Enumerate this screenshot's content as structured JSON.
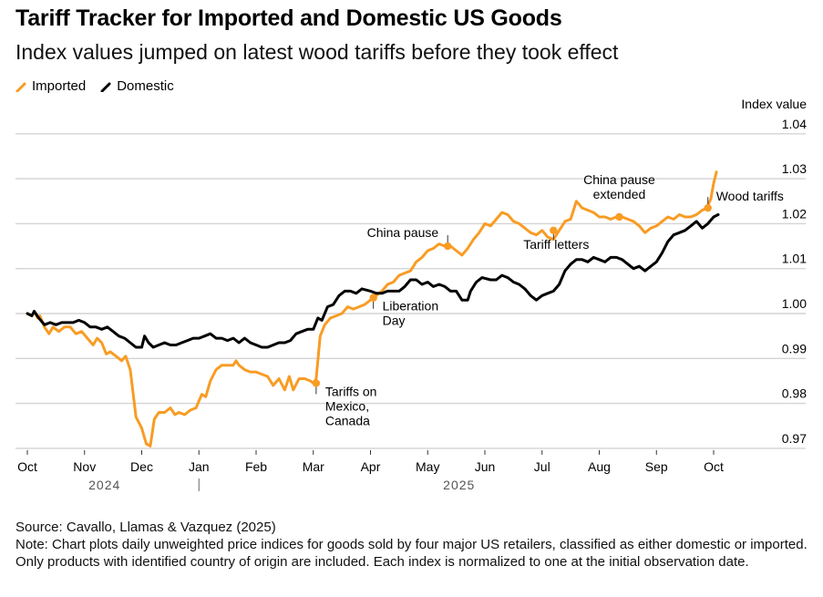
{
  "header": {
    "title": "Tariff Tracker for Imported and Domestic US Goods",
    "subtitle": "Index values jumped on latest wood tariffs before they took effect"
  },
  "legend": [
    {
      "label": "Imported",
      "color": "#f89c24"
    },
    {
      "label": "Domestic",
      "color": "#000000"
    }
  ],
  "footer": {
    "source": "Source: Cavallo, Llamas & Vazquez (2025)",
    "note": "Note: Chart plots daily unweighted price indices for goods sold by four major US retailers, classified as either domestic or imported. Only products with identified country of origin are included. Each index is normalized to one at the initial observation date."
  },
  "chart_data": {
    "type": "line",
    "title": "Tariff Tracker for Imported and Domestic US Goods",
    "ylabel": "Index value",
    "xlabel": "",
    "ylim": [
      0.968,
      1.04
    ],
    "yticks": [
      1.04,
      1.03,
      1.02,
      1.01,
      1.0,
      0.99,
      0.98,
      0.97
    ],
    "ytick_labels": [
      "1.04",
      "1.03",
      "1.02",
      "1.01",
      "1.00",
      "0.99",
      "0.98",
      "0.97"
    ],
    "grid": true,
    "legend_position": "top-left",
    "x_unit": "months since Oct 1, 2024",
    "xlim": [
      0,
      12.35
    ],
    "xticks": [
      {
        "x": 0,
        "label": "Oct"
      },
      {
        "x": 1,
        "label": "Nov"
      },
      {
        "x": 2,
        "label": "Dec"
      },
      {
        "x": 3,
        "label": "Jan"
      },
      {
        "x": 4,
        "label": "Feb"
      },
      {
        "x": 5,
        "label": "Mar"
      },
      {
        "x": 6,
        "label": "Apr"
      },
      {
        "x": 7,
        "label": "May"
      },
      {
        "x": 8,
        "label": "Jun"
      },
      {
        "x": 9,
        "label": "Jul"
      },
      {
        "x": 10,
        "label": "Aug"
      },
      {
        "x": 11,
        "label": "Sep"
      },
      {
        "x": 12,
        "label": "Oct"
      }
    ],
    "years": [
      {
        "label": "2024",
        "x": 1.35
      },
      {
        "label": "2025",
        "x": 7.55
      }
    ],
    "year_divider_x": 3,
    "series": [
      {
        "name": "Imported",
        "color": "#f89c24",
        "points": [
          [
            0.0,
            1.0
          ],
          [
            0.08,
            0.9995
          ],
          [
            0.12,
            1.0005
          ],
          [
            0.18,
            0.999
          ],
          [
            0.22,
            0.9995
          ],
          [
            0.3,
            0.997
          ],
          [
            0.38,
            0.9955
          ],
          [
            0.45,
            0.997
          ],
          [
            0.55,
            0.996
          ],
          [
            0.65,
            0.997
          ],
          [
            0.75,
            0.997
          ],
          [
            0.85,
            0.9955
          ],
          [
            0.95,
            0.996
          ],
          [
            1.05,
            0.9945
          ],
          [
            1.15,
            0.993
          ],
          [
            1.22,
            0.9945
          ],
          [
            1.3,
            0.9935
          ],
          [
            1.38,
            0.991
          ],
          [
            1.45,
            0.9915
          ],
          [
            1.55,
            0.9905
          ],
          [
            1.65,
            0.9895
          ],
          [
            1.72,
            0.9905
          ],
          [
            1.8,
            0.9875
          ],
          [
            1.9,
            0.977
          ],
          [
            2.0,
            0.9745
          ],
          [
            2.08,
            0.971
          ],
          [
            2.15,
            0.9705
          ],
          [
            2.22,
            0.9765
          ],
          [
            2.3,
            0.978
          ],
          [
            2.4,
            0.978
          ],
          [
            2.5,
            0.979
          ],
          [
            2.58,
            0.9775
          ],
          [
            2.65,
            0.978
          ],
          [
            2.75,
            0.9775
          ],
          [
            2.85,
            0.9785
          ],
          [
            2.95,
            0.979
          ],
          [
            3.05,
            0.982
          ],
          [
            3.12,
            0.9815
          ],
          [
            3.2,
            0.985
          ],
          [
            3.3,
            0.9875
          ],
          [
            3.4,
            0.9885
          ],
          [
            3.5,
            0.9885
          ],
          [
            3.6,
            0.9885
          ],
          [
            3.65,
            0.9895
          ],
          [
            3.7,
            0.9885
          ],
          [
            3.8,
            0.9875
          ],
          [
            3.9,
            0.987
          ],
          [
            4.0,
            0.987
          ],
          [
            4.1,
            0.9865
          ],
          [
            4.2,
            0.986
          ],
          [
            4.3,
            0.984
          ],
          [
            4.4,
            0.9855
          ],
          [
            4.5,
            0.983
          ],
          [
            4.58,
            0.986
          ],
          [
            4.65,
            0.983
          ],
          [
            4.75,
            0.9855
          ],
          [
            4.85,
            0.9855
          ],
          [
            4.95,
            0.985
          ],
          [
            5.0,
            0.9845
          ],
          [
            5.05,
            0.9855
          ],
          [
            5.12,
            0.995
          ],
          [
            5.2,
            0.9975
          ],
          [
            5.3,
            0.999
          ],
          [
            5.4,
            0.9995
          ],
          [
            5.5,
            1.0
          ],
          [
            5.6,
            1.0015
          ],
          [
            5.7,
            1.001
          ],
          [
            5.8,
            1.0015
          ],
          [
            5.9,
            1.002
          ],
          [
            6.0,
            1.003
          ],
          [
            6.1,
            1.004
          ],
          [
            6.2,
            1.005
          ],
          [
            6.3,
            1.0065
          ],
          [
            6.4,
            1.007
          ],
          [
            6.5,
            1.0085
          ],
          [
            6.6,
            1.009
          ],
          [
            6.7,
            1.0095
          ],
          [
            6.8,
            1.0115
          ],
          [
            6.9,
            1.0125
          ],
          [
            7.0,
            1.014
          ],
          [
            7.1,
            1.0145
          ],
          [
            7.2,
            1.0155
          ],
          [
            7.3,
            1.015
          ],
          [
            7.4,
            1.015
          ],
          [
            7.5,
            1.014
          ],
          [
            7.6,
            1.013
          ],
          [
            7.7,
            1.0145
          ],
          [
            7.8,
            1.0165
          ],
          [
            7.9,
            1.018
          ],
          [
            8.0,
            1.02
          ],
          [
            8.1,
            1.0195
          ],
          [
            8.2,
            1.021
          ],
          [
            8.3,
            1.0225
          ],
          [
            8.4,
            1.022
          ],
          [
            8.5,
            1.0205
          ],
          [
            8.6,
            1.02
          ],
          [
            8.7,
            1.019
          ],
          [
            8.8,
            1.018
          ],
          [
            8.9,
            1.0175
          ],
          [
            9.0,
            1.0185
          ],
          [
            9.1,
            1.017
          ],
          [
            9.2,
            1.0165
          ],
          [
            9.3,
            1.0185
          ],
          [
            9.4,
            1.0205
          ],
          [
            9.5,
            1.021
          ],
          [
            9.6,
            1.025
          ],
          [
            9.7,
            1.0235
          ],
          [
            9.8,
            1.023
          ],
          [
            9.9,
            1.0225
          ],
          [
            10.0,
            1.0215
          ],
          [
            10.1,
            1.0215
          ],
          [
            10.2,
            1.021
          ],
          [
            10.3,
            1.0215
          ],
          [
            10.4,
            1.0215
          ],
          [
            10.5,
            1.021
          ],
          [
            10.6,
            1.0205
          ],
          [
            10.7,
            1.0195
          ],
          [
            10.8,
            1.018
          ],
          [
            10.9,
            1.019
          ],
          [
            11.0,
            1.0195
          ],
          [
            11.1,
            1.0205
          ],
          [
            11.2,
            1.0215
          ],
          [
            11.3,
            1.021
          ],
          [
            11.4,
            1.022
          ],
          [
            11.5,
            1.0215
          ],
          [
            11.6,
            1.0215
          ],
          [
            11.7,
            1.022
          ],
          [
            11.8,
            1.023
          ],
          [
            11.88,
            1.0235
          ],
          [
            11.95,
            1.0255
          ],
          [
            12.0,
            1.029
          ],
          [
            12.05,
            1.0315
          ]
        ]
      },
      {
        "name": "Domestic",
        "color": "#000000",
        "points": [
          [
            0.0,
            1.0
          ],
          [
            0.08,
            0.9995
          ],
          [
            0.12,
            1.0005
          ],
          [
            0.2,
            0.999
          ],
          [
            0.3,
            0.9975
          ],
          [
            0.4,
            0.998
          ],
          [
            0.5,
            0.9975
          ],
          [
            0.6,
            0.998
          ],
          [
            0.7,
            0.998
          ],
          [
            0.8,
            0.998
          ],
          [
            0.9,
            0.9985
          ],
          [
            1.0,
            0.998
          ],
          [
            1.1,
            0.997
          ],
          [
            1.2,
            0.997
          ],
          [
            1.3,
            0.9965
          ],
          [
            1.4,
            0.997
          ],
          [
            1.5,
            0.996
          ],
          [
            1.6,
            0.995
          ],
          [
            1.7,
            0.9945
          ],
          [
            1.8,
            0.9935
          ],
          [
            1.9,
            0.9925
          ],
          [
            2.0,
            0.9925
          ],
          [
            2.05,
            0.995
          ],
          [
            2.12,
            0.9935
          ],
          [
            2.2,
            0.9925
          ],
          [
            2.3,
            0.993
          ],
          [
            2.4,
            0.9935
          ],
          [
            2.5,
            0.993
          ],
          [
            2.6,
            0.993
          ],
          [
            2.7,
            0.9935
          ],
          [
            2.8,
            0.994
          ],
          [
            2.9,
            0.9945
          ],
          [
            3.0,
            0.9945
          ],
          [
            3.1,
            0.995
          ],
          [
            3.2,
            0.9955
          ],
          [
            3.3,
            0.9945
          ],
          [
            3.4,
            0.9945
          ],
          [
            3.5,
            0.994
          ],
          [
            3.6,
            0.9945
          ],
          [
            3.7,
            0.9935
          ],
          [
            3.8,
            0.9945
          ],
          [
            3.9,
            0.9935
          ],
          [
            4.0,
            0.993
          ],
          [
            4.1,
            0.9925
          ],
          [
            4.2,
            0.9925
          ],
          [
            4.3,
            0.993
          ],
          [
            4.4,
            0.9935
          ],
          [
            4.5,
            0.9935
          ],
          [
            4.6,
            0.994
          ],
          [
            4.7,
            0.9955
          ],
          [
            4.8,
            0.996
          ],
          [
            4.9,
            0.9965
          ],
          [
            5.0,
            0.9965
          ],
          [
            5.08,
            0.999
          ],
          [
            5.15,
            0.9985
          ],
          [
            5.25,
            1.0015
          ],
          [
            5.35,
            1.002
          ],
          [
            5.45,
            1.004
          ],
          [
            5.55,
            1.005
          ],
          [
            5.65,
            1.005
          ],
          [
            5.75,
            1.0045
          ],
          [
            5.85,
            1.0055
          ],
          [
            6.0,
            1.005
          ],
          [
            6.1,
            1.0045
          ],
          [
            6.2,
            1.0045
          ],
          [
            6.3,
            1.005
          ],
          [
            6.4,
            1.005
          ],
          [
            6.5,
            1.005
          ],
          [
            6.6,
            1.006
          ],
          [
            6.7,
            1.0075
          ],
          [
            6.8,
            1.0075
          ],
          [
            6.9,
            1.0065
          ],
          [
            7.0,
            1.007
          ],
          [
            7.1,
            1.006
          ],
          [
            7.2,
            1.0065
          ],
          [
            7.3,
            1.006
          ],
          [
            7.4,
            1.005
          ],
          [
            7.5,
            1.005
          ],
          [
            7.6,
            1.003
          ],
          [
            7.7,
            1.003
          ],
          [
            7.75,
            1.005
          ],
          [
            7.85,
            1.007
          ],
          [
            7.95,
            1.008
          ],
          [
            8.1,
            1.0075
          ],
          [
            8.2,
            1.0075
          ],
          [
            8.3,
            1.0085
          ],
          [
            8.4,
            1.008
          ],
          [
            8.5,
            1.007
          ],
          [
            8.6,
            1.0065
          ],
          [
            8.7,
            1.0055
          ],
          [
            8.8,
            1.004
          ],
          [
            8.9,
            1.003
          ],
          [
            9.0,
            1.004
          ],
          [
            9.1,
            1.0045
          ],
          [
            9.2,
            1.005
          ],
          [
            9.3,
            1.0065
          ],
          [
            9.4,
            1.0095
          ],
          [
            9.5,
            1.011
          ],
          [
            9.6,
            1.012
          ],
          [
            9.7,
            1.012
          ],
          [
            9.8,
            1.0115
          ],
          [
            9.9,
            1.0125
          ],
          [
            10.0,
            1.012
          ],
          [
            10.1,
            1.0115
          ],
          [
            10.2,
            1.0125
          ],
          [
            10.3,
            1.0125
          ],
          [
            10.4,
            1.012
          ],
          [
            10.5,
            1.011
          ],
          [
            10.6,
            1.01
          ],
          [
            10.7,
            1.0105
          ],
          [
            10.8,
            1.0095
          ],
          [
            10.9,
            1.0105
          ],
          [
            11.0,
            1.0115
          ],
          [
            11.1,
            1.0135
          ],
          [
            11.2,
            1.016
          ],
          [
            11.3,
            1.0175
          ],
          [
            11.4,
            1.018
          ],
          [
            11.5,
            1.0185
          ],
          [
            11.6,
            1.0195
          ],
          [
            11.7,
            1.0205
          ],
          [
            11.8,
            1.019
          ],
          [
            11.9,
            1.02
          ],
          [
            12.0,
            1.0215
          ],
          [
            12.08,
            1.022
          ]
        ]
      }
    ],
    "annotations": [
      {
        "label": [
          "Tariffs on",
          "Mexico,",
          "Canada"
        ],
        "x": 5.05,
        "y": 0.9845,
        "text_side": "below-right"
      },
      {
        "label": [
          "Liberation",
          "Day"
        ],
        "x": 6.05,
        "y": 1.0035,
        "text_side": "below-right"
      },
      {
        "label": [
          "China pause"
        ],
        "x": 7.35,
        "y": 1.015,
        "text_side": "above-left"
      },
      {
        "label": [
          "Tariff letters"
        ],
        "x": 9.2,
        "y": 1.0185,
        "text_side": "below"
      },
      {
        "label": [
          "China pause",
          "extended"
        ],
        "x": 10.35,
        "y": 1.0215,
        "text_side": "above"
      },
      {
        "label": [
          "Wood tariffs"
        ],
        "x": 11.9,
        "y": 1.0235,
        "text_side": "above-right"
      }
    ]
  }
}
